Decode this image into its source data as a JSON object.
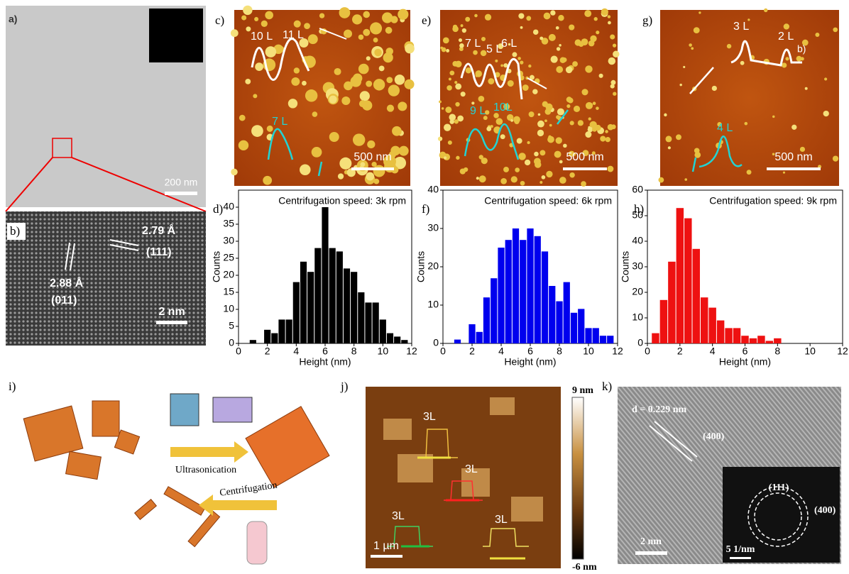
{
  "chart_data": [
    {
      "type": "histogram",
      "label": "d)",
      "title": "Centrifugation speed: 3k rpm",
      "x_label": "Height (nm)",
      "y_label": "Counts",
      "bins": [
        0.75,
        1.25,
        1.75,
        2.25,
        2.75,
        3.25,
        3.75,
        4.25,
        4.75,
        5.25,
        5.75,
        6.25,
        6.75,
        7.25,
        7.75,
        8.25,
        8.75,
        9.25,
        9.75,
        10.25,
        10.75,
        11.25,
        11.75
      ],
      "values": [
        1,
        0,
        4,
        3,
        7,
        7,
        18,
        24,
        21,
        28,
        40,
        28,
        27,
        22,
        21,
        15,
        12,
        12,
        7,
        3,
        2,
        1
      ],
      "color": "#000000",
      "xlim": [
        0,
        12
      ],
      "xticks": [
        0,
        2,
        4,
        6,
        8,
        10,
        12
      ],
      "ylim": [
        0,
        45
      ],
      "yticks": [
        0,
        5,
        10,
        15,
        20,
        25,
        30,
        35,
        40
      ]
    },
    {
      "type": "histogram",
      "label": "f)",
      "title": "Centrifugation speed: 6k rpm",
      "x_label": "Height (nm)",
      "y_label": "Counts",
      "bins": [
        0.75,
        1.25,
        1.75,
        2.25,
        2.75,
        3.25,
        3.75,
        4.25,
        4.75,
        5.25,
        5.75,
        6.25,
        6.75,
        7.25,
        7.75,
        8.25,
        8.75,
        9.25,
        9.75,
        10.25,
        10.75,
        11.25,
        11.75
      ],
      "values": [
        1,
        0,
        5,
        3,
        12,
        17,
        25,
        27,
        30,
        27,
        30,
        28,
        24,
        15,
        11,
        16,
        8,
        9,
        4,
        4,
        2,
        2
      ],
      "color": "#0000ee",
      "xlim": [
        0,
        12
      ],
      "xticks": [
        0,
        2,
        4,
        6,
        8,
        10,
        12
      ],
      "ylim": [
        0,
        40
      ],
      "yticks": [
        0,
        10,
        20,
        30,
        40
      ]
    },
    {
      "type": "histogram",
      "label": "h)",
      "title": "Centrifugation speed: 9k rpm",
      "x_label": "Height (nm)",
      "y_label": "Counts",
      "bins": [
        0.25,
        0.75,
        1.25,
        1.75,
        2.25,
        2.75,
        3.25,
        3.75,
        4.25,
        4.75,
        5.25,
        5.75,
        6.25,
        6.75,
        7.25,
        7.75,
        8.25
      ],
      "values": [
        4,
        17,
        32,
        53,
        49,
        37,
        18,
        14,
        9,
        6,
        6,
        3,
        2,
        3,
        1,
        2
      ],
      "color": "#ee1111",
      "xlim": [
        0,
        12
      ],
      "xticks": [
        0,
        2,
        4,
        6,
        8,
        10,
        12
      ],
      "ylim": [
        0,
        60
      ],
      "yticks": [
        0,
        10,
        20,
        30,
        40,
        50,
        60
      ]
    }
  ],
  "panels": {
    "a": {
      "label": "a)",
      "scale": "200 nm"
    },
    "b": {
      "label": "b)",
      "d1": "2.79 Å",
      "plane1": "(111)",
      "d2": "2.88 Å",
      "plane2": "(011)",
      "scale": "2 nm"
    },
    "c": {
      "label": "c)",
      "layers": [
        "10 L",
        "11 L",
        "7 L"
      ],
      "scale": "500 nm"
    },
    "e": {
      "label": "e)",
      "layers": [
        "7 L",
        "5 L",
        "6 L",
        "9 L",
        "10L"
      ],
      "scale": "500 nm"
    },
    "g": {
      "label": "g)",
      "layers": [
        "3 L",
        "2 L",
        "4 L"
      ],
      "note": "b)",
      "scale": "500 nm"
    },
    "i": {
      "label": "i)",
      "step1": "Ultrasonication",
      "step2": "Centrifugation"
    },
    "j": {
      "label": "j)",
      "layers": [
        "3L",
        "3L",
        "3L",
        "3L"
      ],
      "bar_max": "9 nm",
      "bar_min": "-6 nm",
      "scale": "1 µm"
    },
    "k": {
      "label": "k)",
      "spacing": "d = 0.229 nm",
      "plane": "(400)",
      "fft1": "(111)",
      "fft2": "(400)",
      "scale": "2 nm",
      "fft_scale": "5 1/nm"
    }
  }
}
